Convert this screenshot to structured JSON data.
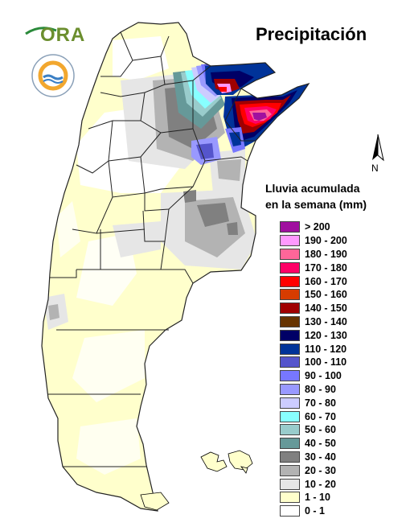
{
  "title": "Precipitación",
  "logo": {
    "text": "ORA"
  },
  "legend": {
    "title_line1": "Lluvia acumulada",
    "title_line2": "en la semana (mm)",
    "items": [
      {
        "label": "> 200",
        "color": "#a0109f"
      },
      {
        "label": "190 - 200",
        "color": "#ff99ff"
      },
      {
        "label": "180 - 190",
        "color": "#ff6699"
      },
      {
        "label": "170 - 180",
        "color": "#ff0066"
      },
      {
        "label": "160 - 170",
        "color": "#ff0000"
      },
      {
        "label": "150 - 160",
        "color": "#d63c00"
      },
      {
        "label": "140 - 150",
        "color": "#a00000"
      },
      {
        "label": "130 - 140",
        "color": "#663300"
      },
      {
        "label": "120 - 130",
        "color": "#000066"
      },
      {
        "label": "110 - 120",
        "color": "#003399"
      },
      {
        "label": "100 - 110",
        "color": "#5555cc"
      },
      {
        "label": "90 - 100",
        "color": "#7777ff"
      },
      {
        "label": "80 - 90",
        "color": "#9999ff"
      },
      {
        "label": "70 - 80",
        "color": "#ccccff"
      },
      {
        "label": "60 - 70",
        "color": "#88ffff"
      },
      {
        "label": "50 - 60",
        "color": "#99cccc"
      },
      {
        "label": "40 - 50",
        "color": "#669999"
      },
      {
        "label": "30 - 40",
        "color": "#808080"
      },
      {
        "label": "20 - 30",
        "color": "#b3b3b3"
      },
      {
        "label": "10 - 20",
        "color": "#e6e6e6"
      },
      {
        "label": "1 - 10",
        "color": "#ffffcc"
      },
      {
        "label": "0 - 1",
        "color": "#ffffff"
      }
    ]
  },
  "north_arrow": {
    "label": "N"
  }
}
